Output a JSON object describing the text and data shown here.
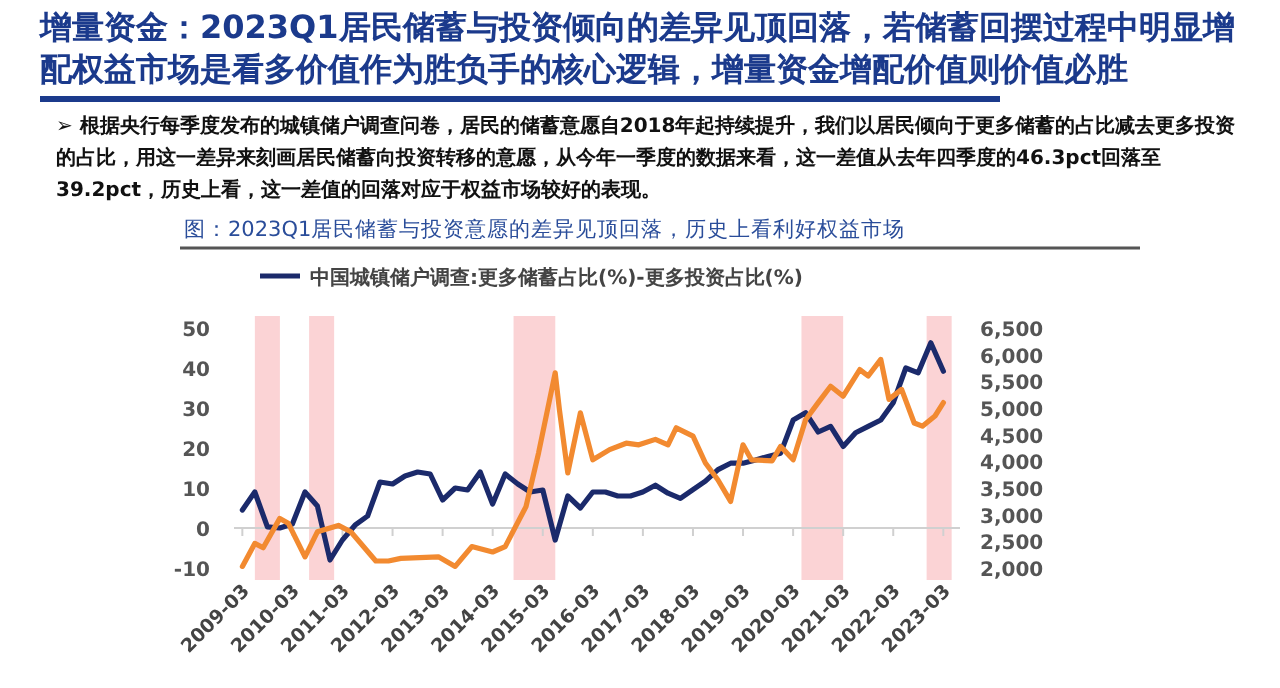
{
  "chart_data": {
    "type": "line",
    "title": "增量资金：2023Q1居民储蓄与投资倾向的差异见顶回落，若储蓄回摆过程中明显增配权益市场是看多价值作为胜负手的核心逻辑，增量资金增配价值则价值必胜",
    "subtitle": "➢ 根据央行每季度发布的城镇储户调查问卷，居民的储蓄意愿自2018年起持续提升，我们以居民倾向于更多储蓄的占比减去更多投资的占比，用这一差异来刻画居民储蓄向投资转移的意愿，从今年一季度的数据来看，这一差值从去年四季度的46.3pct回落至39.2pct，历史上看，这一差值的回落对应于权益市场较好的表现。",
    "annotations": [
      "图：2023Q1居民储蓄与投资意愿的差异见顶回落，历史上看利好权益市场"
    ],
    "legend": "top",
    "xlim": [
      "2009-01",
      "2023-07"
    ],
    "xticks": [
      "2009-03",
      "2010-03",
      "2011-03",
      "2012-03",
      "2013-03",
      "2014-03",
      "2015-03",
      "2016-03",
      "2017-03",
      "2018-03",
      "2019-03",
      "2020-03",
      "2021-03",
      "2022-03",
      "2023-03"
    ],
    "ylim": [
      -10,
      50
    ],
    "yticks": [
      -10,
      0,
      10,
      20,
      30,
      40,
      50
    ],
    "y2lim": [
      2000,
      6500
    ],
    "y2ticks": [
      {
        "value": 2000,
        "label": "2,000"
      },
      {
        "value": 2500,
        "label": "2,500"
      },
      {
        "value": 3000,
        "label": "3,000"
      },
      {
        "value": 3500,
        "label": "3,500"
      },
      {
        "value": 4000,
        "label": "4,000"
      },
      {
        "value": 4500,
        "label": "4,500"
      },
      {
        "value": 5000,
        "label": "5,000"
      },
      {
        "value": 5500,
        "label": "5,500"
      },
      {
        "value": 6000,
        "label": "6,000"
      },
      {
        "value": 6500,
        "label": "6,500"
      }
    ],
    "bands": [
      {
        "axis": "x",
        "from": "2009-06",
        "to": "2009-12",
        "color": "#fbd3d5"
      },
      {
        "axis": "x",
        "from": "2010-07",
        "to": "2011-01",
        "color": "#fbd3d5"
      },
      {
        "axis": "x",
        "from": "2014-08",
        "to": "2015-06",
        "color": "#fbd3d5"
      },
      {
        "axis": "x",
        "from": "2020-05",
        "to": "2021-03",
        "color": "#fbd3d5"
      },
      {
        "axis": "x",
        "from": "2022-11",
        "to": "2023-05",
        "color": "#fbd3d5"
      }
    ],
    "series": [
      {
        "name": "中国城镇储户调查:更多储蓄占比(%)-更多投资占比(%)",
        "color": "#1b2a6b",
        "x": [
          "2009-03",
          "2009-06",
          "2009-09",
          "2009-12",
          "2010-03",
          "2010-06",
          "2010-09",
          "2010-12",
          "2011-03",
          "2011-06",
          "2011-09",
          "2011-12",
          "2012-03",
          "2012-06",
          "2012-09",
          "2012-12",
          "2013-03",
          "2013-06",
          "2013-09",
          "2013-12",
          "2014-03",
          "2014-06",
          "2014-09",
          "2014-12",
          "2015-03",
          "2015-06",
          "2015-09",
          "2015-12",
          "2016-03",
          "2016-06",
          "2016-09",
          "2016-12",
          "2017-03",
          "2017-06",
          "2017-09",
          "2017-12",
          "2018-03",
          "2018-06",
          "2018-09",
          "2018-12",
          "2019-03",
          "2019-06",
          "2019-09",
          "2019-12",
          "2020-03",
          "2020-06",
          "2020-09",
          "2020-12",
          "2021-03",
          "2021-06",
          "2021-09",
          "2021-12",
          "2022-03",
          "2022-06",
          "2022-09",
          "2022-12",
          "2023-03"
        ],
        "values": [
          4.5,
          9,
          0.3,
          0,
          1,
          9,
          5.5,
          -8,
          -3,
          0.7,
          3,
          11.5,
          11,
          13,
          14,
          13.5,
          7,
          10,
          9.5,
          14,
          6,
          13.5,
          11,
          9,
          9.5,
          -3,
          8,
          5,
          9,
          9,
          8,
          8,
          9,
          10.7,
          8.7,
          7.4,
          9.6,
          11.7,
          14.6,
          16.2,
          16.2,
          17,
          17.9,
          18.7,
          27,
          28.8,
          24,
          25.4,
          20.4,
          23.8,
          25.4,
          27,
          31.3,
          40,
          38.8,
          46.3,
          39.2
        ]
      },
      {
        "axis": "y2",
        "color": "#f28a30",
        "x": [
          "2009-03",
          "2009-06",
          "2009-08",
          "2009-12",
          "2010-02",
          "2010-06",
          "2010-09",
          "2011-02",
          "2011-05",
          "2011-11",
          "2012-02",
          "2012-05",
          "2013-02",
          "2013-06",
          "2013-10",
          "2014-03",
          "2014-06",
          "2014-11",
          "2015-02",
          "2015-06",
          "2015-07",
          "2015-09",
          "2015-12",
          "2016-03",
          "2016-07",
          "2016-11",
          "2017-02",
          "2017-06",
          "2017-09",
          "2017-11",
          "2018-03",
          "2018-06",
          "2018-09",
          "2018-12",
          "2019-03",
          "2019-05",
          "2019-10",
          "2019-12",
          "2020-03",
          "2020-06",
          "2020-09",
          "2020-12",
          "2021-03",
          "2021-07",
          "2021-09",
          "2021-12",
          "2022-02",
          "2022-05",
          "2022-08",
          "2022-10",
          "2023-01",
          "2023-03"
        ],
        "values": [
          2030,
          2460,
          2380,
          2930,
          2840,
          2210,
          2680,
          2800,
          2680,
          2130,
          2130,
          2180,
          2210,
          2030,
          2400,
          2300,
          2400,
          3150,
          4160,
          5660,
          4970,
          3780,
          4910,
          4030,
          4220,
          4340,
          4310,
          4410,
          4310,
          4630,
          4470,
          3970,
          3650,
          3250,
          4310,
          4030,
          4010,
          4280,
          4030,
          4780,
          5100,
          5410,
          5220,
          5720,
          5600,
          5910,
          5160,
          5350,
          4720,
          4660,
          4850,
          5100
        ]
      }
    ]
  }
}
